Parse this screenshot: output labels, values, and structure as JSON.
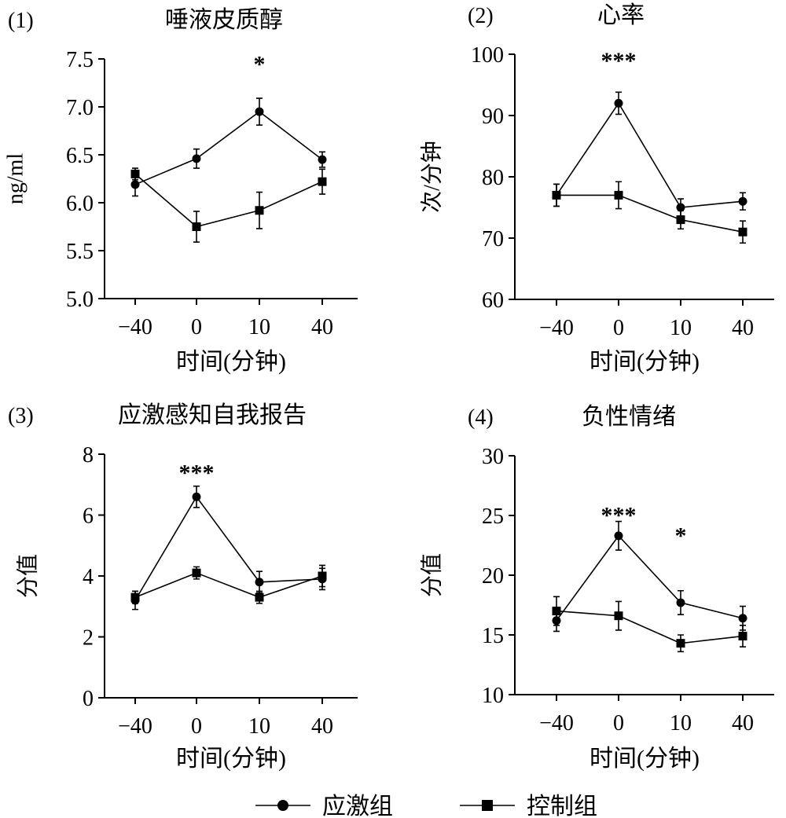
{
  "chart_data": [
    {
      "type": "line",
      "panel": "(1)",
      "title": "唾液皮质醇",
      "ylabel": "ng/ml",
      "xlabel": "时间(分钟)",
      "categories": [
        "−40",
        "0",
        "10",
        "40"
      ],
      "ylim": [
        5.0,
        7.5
      ],
      "yticks": [
        "5.0",
        "5.5",
        "6.0",
        "6.5",
        "7.0",
        "7.5"
      ],
      "ytick_values": [
        5.0,
        5.5,
        6.0,
        6.5,
        7.0,
        7.5
      ],
      "series": [
        {
          "name": "应激组",
          "marker": "circle",
          "values": [
            6.19,
            6.46,
            6.95,
            6.45
          ],
          "errors": [
            0.12,
            0.1,
            0.14,
            0.08
          ]
        },
        {
          "name": "控制组",
          "marker": "square",
          "values": [
            6.3,
            5.75,
            5.92,
            6.22
          ],
          "errors": [
            0.06,
            0.16,
            0.19,
            0.13
          ]
        }
      ],
      "annotations": [
        {
          "category": "10",
          "text": "*",
          "value": 7.48
        }
      ]
    },
    {
      "type": "line",
      "panel": "(2)",
      "title": "心率",
      "ylabel": "次/分钟",
      "xlabel": "时间(分钟)",
      "categories": [
        "−40",
        "0",
        "10",
        "40"
      ],
      "ylim": [
        60,
        100
      ],
      "yticks": [
        "60",
        "70",
        "80",
        "90",
        "100"
      ],
      "ytick_values": [
        60,
        70,
        80,
        90,
        100
      ],
      "series": [
        {
          "name": "应激组",
          "marker": "circle",
          "values": [
            77,
            92,
            75,
            76
          ],
          "errors": [
            1.8,
            1.8,
            1.4,
            1.4
          ]
        },
        {
          "name": "控制组",
          "marker": "square",
          "values": [
            77,
            77,
            73,
            71
          ],
          "errors": [
            1.8,
            2.2,
            1.5,
            1.8
          ]
        }
      ],
      "annotations": [
        {
          "category": "0",
          "text": "***",
          "value": 99.5
        }
      ]
    },
    {
      "type": "line",
      "panel": "(3)",
      "title": "应激感知自我报告",
      "ylabel": "分值",
      "xlabel": "时间(分钟)",
      "categories": [
        "−40",
        "0",
        "10",
        "40"
      ],
      "ylim": [
        0,
        8
      ],
      "yticks": [
        "0",
        "2",
        "4",
        "6",
        "8"
      ],
      "ytick_values": [
        0,
        2,
        4,
        6,
        8
      ],
      "series": [
        {
          "name": "应激组",
          "marker": "circle",
          "values": [
            3.2,
            6.6,
            3.8,
            3.9
          ],
          "errors": [
            0.3,
            0.35,
            0.35,
            0.35
          ]
        },
        {
          "name": "控制组",
          "marker": "square",
          "values": [
            3.3,
            4.1,
            3.3,
            4.0
          ],
          "errors": [
            0.2,
            0.2,
            0.2,
            0.35
          ]
        }
      ],
      "annotations": [
        {
          "category": "0",
          "text": "***",
          "value": 7.5
        }
      ]
    },
    {
      "type": "line",
      "panel": "(4)",
      "title": "负性情绪",
      "ylabel": "分值",
      "xlabel": "时间(分钟)",
      "categories": [
        "−40",
        "0",
        "10",
        "40"
      ],
      "ylim": [
        10,
        30
      ],
      "yticks": [
        "10",
        "15",
        "20",
        "25",
        "30"
      ],
      "ytick_values": [
        10,
        15,
        20,
        25,
        30
      ],
      "series": [
        {
          "name": "应激组",
          "marker": "circle",
          "values": [
            16.2,
            23.3,
            17.7,
            16.4
          ],
          "errors": [
            0.9,
            1.2,
            1.0,
            1.0
          ]
        },
        {
          "name": "控制组",
          "marker": "square",
          "values": [
            17.0,
            16.6,
            14.3,
            14.9
          ],
          "errors": [
            1.2,
            1.2,
            0.7,
            0.9
          ]
        }
      ],
      "annotations": [
        {
          "category": "0",
          "text": "***",
          "value": 25.3
        },
        {
          "category": "10",
          "text": "*",
          "value": 23.6
        }
      ]
    }
  ],
  "legend": {
    "position": "bottom",
    "items": [
      {
        "label": "应激组",
        "marker": "circle"
      },
      {
        "label": "控制组",
        "marker": "square"
      }
    ]
  }
}
